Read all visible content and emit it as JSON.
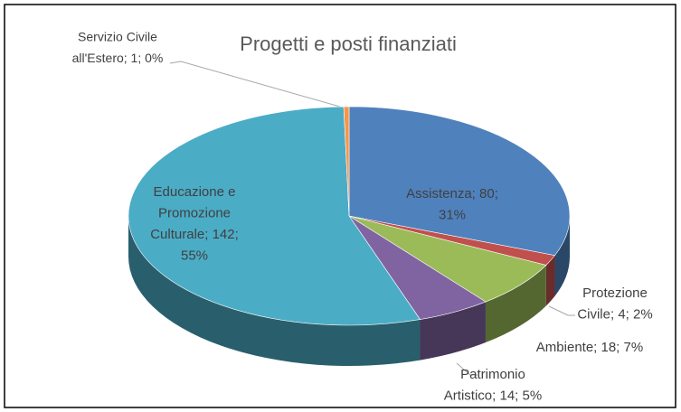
{
  "chart_data": {
    "type": "pie3d",
    "title": "Progetti e posti finanziati",
    "values": [
      80,
      4,
      18,
      14,
      142,
      1
    ],
    "value_labels": [
      [
        "Assistenza; 80;",
        "31%"
      ],
      [
        "Protezione",
        "Civile; 4; 2%"
      ],
      [
        "Ambiente; 18; 7%"
      ],
      [
        "Patrimonio",
        "Artistico; 14; 5%"
      ],
      [
        "Educazione e",
        "Promozione",
        "Culturale; 142;",
        "55%"
      ],
      [
        "Servizio Civile",
        "all'Estero; 1; 0%"
      ]
    ],
    "colors": [
      "#4f81bd",
      "#c0504d",
      "#9bbb59",
      "#8064a2",
      "#4bacc6",
      "#f79646"
    ]
  }
}
